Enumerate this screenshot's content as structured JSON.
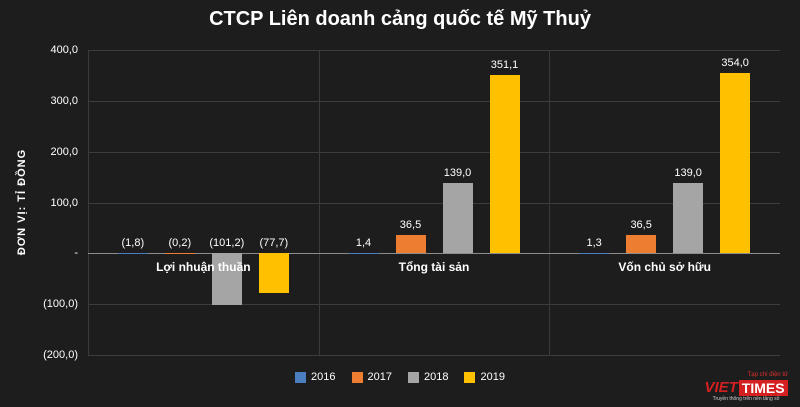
{
  "title": "CTCP Liên doanh cảng quốc tế Mỹ Thuỷ",
  "y_axis_label": "ĐƠN VỊ: TỈ ĐỒNG",
  "chart_data": {
    "type": "bar",
    "title": "CTCP Liên doanh cảng quốc tế Mỹ Thuỷ",
    "ylabel": "ĐƠN VỊ: TỈ ĐỒNG",
    "categories": [
      "Lợi nhuận thuần",
      "Tổng tài sản",
      "Vốn chủ sở hữu"
    ],
    "series": [
      {
        "name": "2016",
        "color": "#4a7ebf",
        "values": [
          -1.8,
          1.4,
          1.3
        ],
        "labels": [
          "(1,8)",
          "1,4",
          "1,3"
        ]
      },
      {
        "name": "2017",
        "color": "#ed7d31",
        "values": [
          -0.2,
          36.5,
          36.5
        ],
        "labels": [
          "(0,2)",
          "36,5",
          "36,5"
        ]
      },
      {
        "name": "2018",
        "color": "#a5a5a5",
        "values": [
          -101.2,
          139.0,
          139.0
        ],
        "labels": [
          "(101,2)",
          "139,0",
          "139,0"
        ]
      },
      {
        "name": "2019",
        "color": "#ffc000",
        "values": [
          -77.7,
          351.1,
          354.0
        ],
        "labels": [
          "(77,7)",
          "351,1",
          "354,0"
        ]
      }
    ],
    "y_ticks": [
      {
        "value": 400,
        "label": "400,0"
      },
      {
        "value": 300,
        "label": "300,0"
      },
      {
        "value": 200,
        "label": "200,0"
      },
      {
        "value": 100,
        "label": "100,0"
      },
      {
        "value": 0,
        "label": "-"
      },
      {
        "value": -100,
        "label": "(100,0)"
      },
      {
        "value": -200,
        "label": "(200,0)"
      }
    ],
    "ylim": [
      -200,
      400
    ],
    "grid": true,
    "legend_position": "bottom"
  },
  "logo": {
    "tagline_top": "Tạp chí điện tử",
    "name_part1": "VIET",
    "name_part2": "TIMES",
    "tagline_bottom": "Truyền thông trên nền tảng số"
  }
}
